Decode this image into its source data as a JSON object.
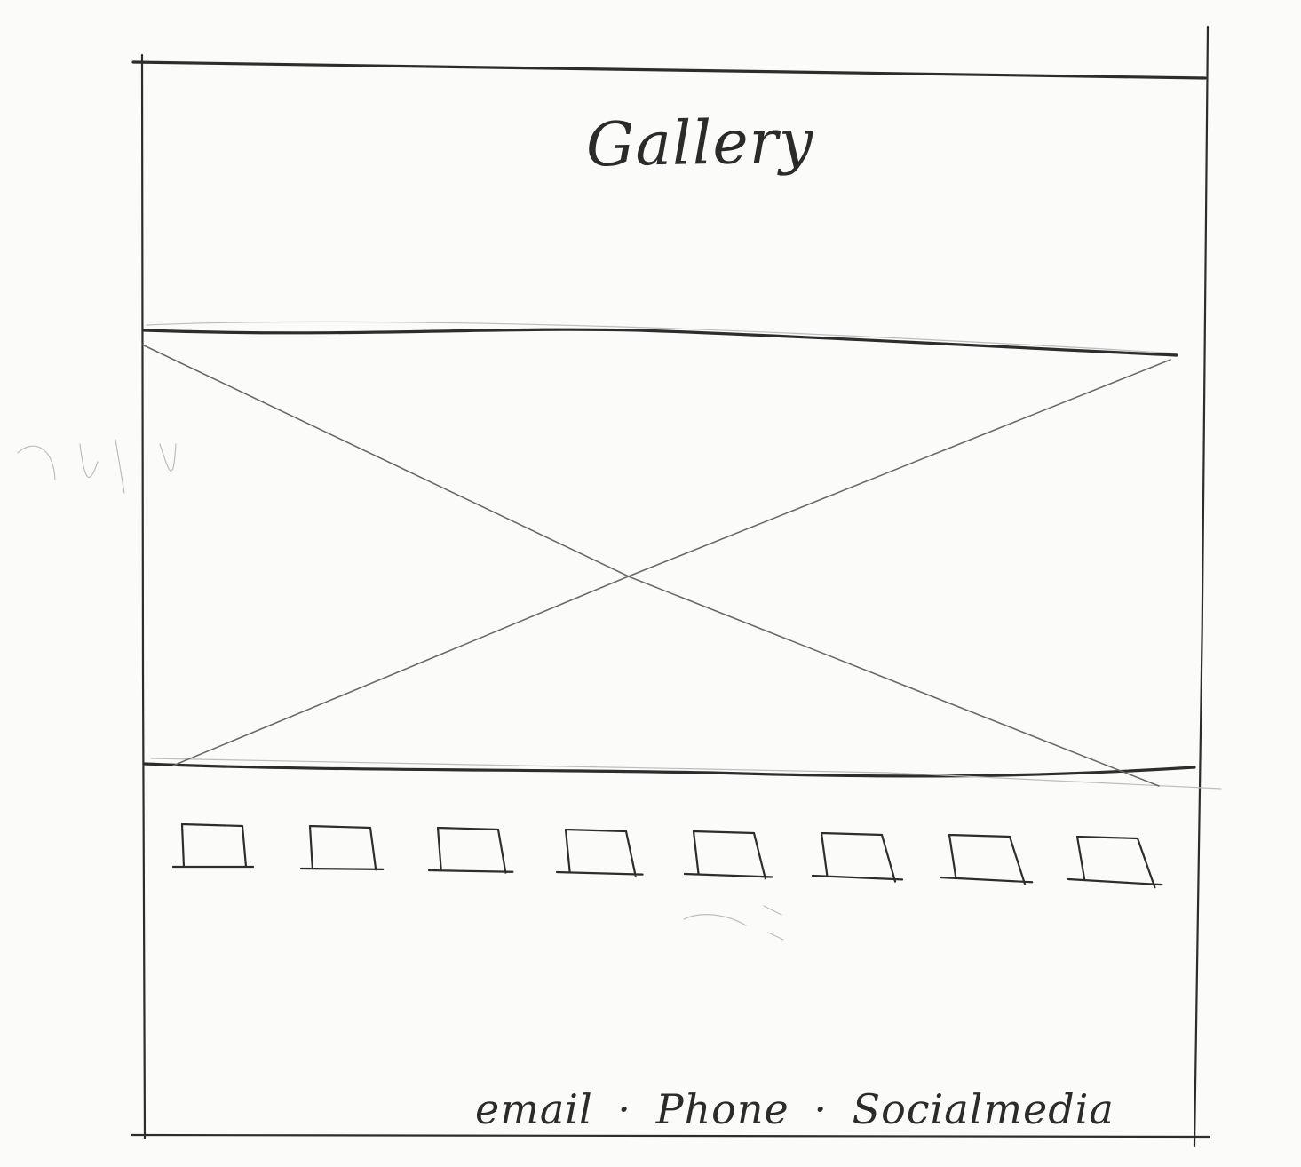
{
  "header": {
    "title": "Gallery"
  },
  "hero": {
    "placeholder_icon": "image-placeholder-x"
  },
  "thumbnails": {
    "count": 8,
    "icon": "thumbnail-placeholder"
  },
  "footer": {
    "email": "email",
    "phone": "Phone",
    "social": "Socialmedia",
    "separator": "·"
  }
}
